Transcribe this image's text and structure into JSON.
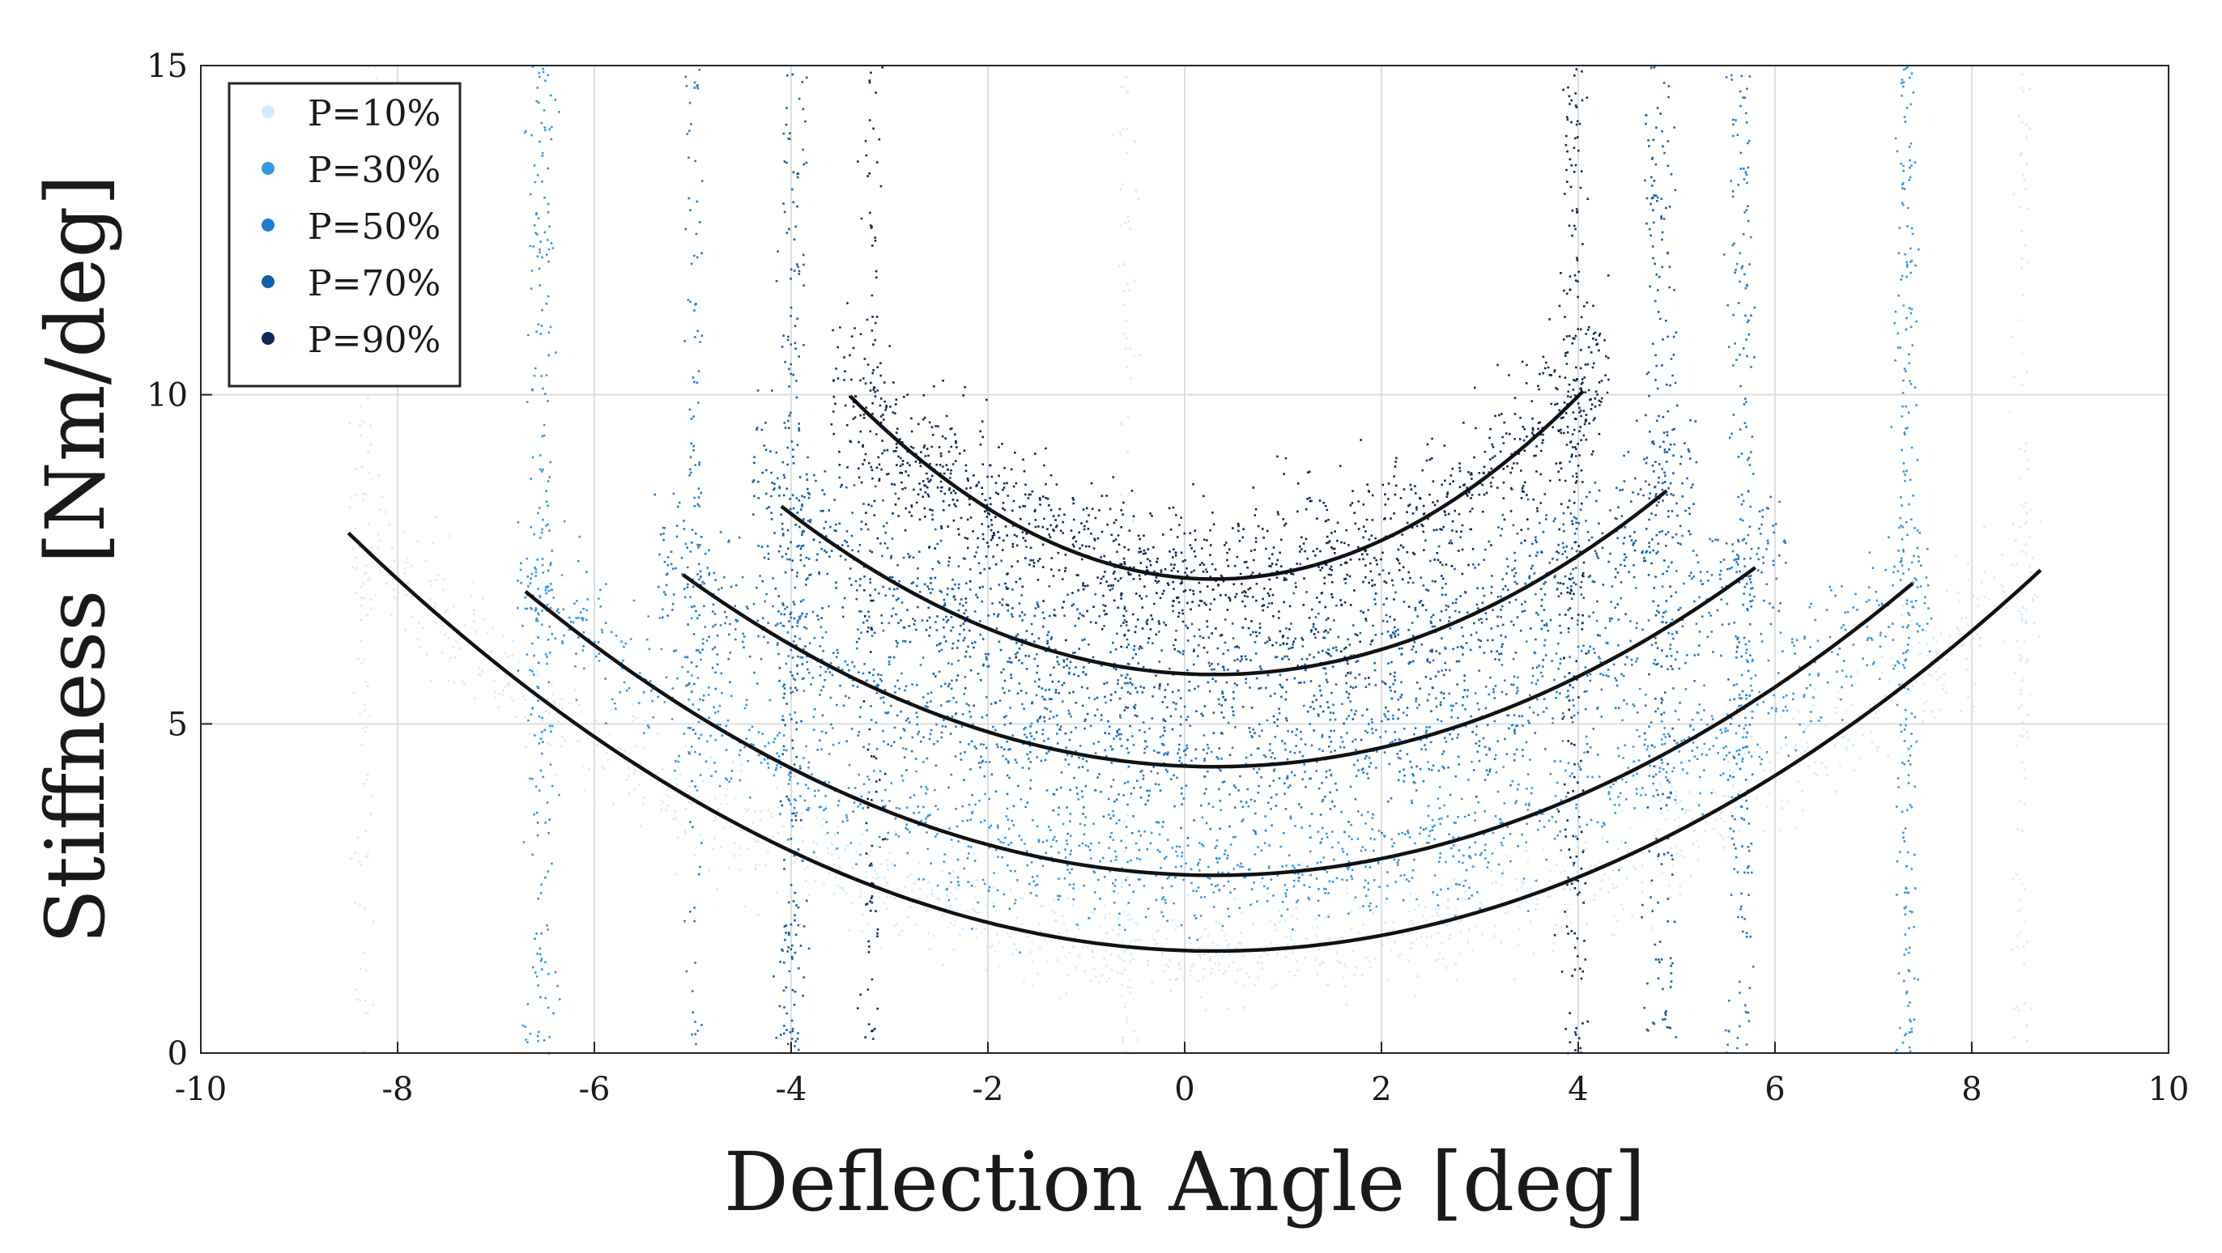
{
  "chart_data": {
    "type": "scatter",
    "title": "",
    "xlabel": "Deflection Angle [deg]",
    "ylabel": "Stiffness [Nm/deg]",
    "xlim": [
      -10,
      10
    ],
    "ylim": [
      0,
      15
    ],
    "xticks": [
      -10,
      -8,
      -6,
      -4,
      -2,
      0,
      2,
      4,
      6,
      8,
      10
    ],
    "yticks": [
      0,
      5,
      10,
      15
    ],
    "grid": true,
    "legend_position": "top-left",
    "series": [
      {
        "name": "P=10%",
        "color": "#d4ecfa",
        "fit": {
          "x0": 0.3,
          "y0": 1.55,
          "a": 0.082,
          "xmin": -8.5,
          "xmax": 8.7
        },
        "edges": [
          -8.1,
          8.3
        ],
        "spikes": [
          -8.35,
          -0.6,
          8.5
        ]
      },
      {
        "name": "P=30%",
        "color": "#3399e6",
        "fit": {
          "x0": 0.3,
          "y0": 2.7,
          "a": 0.088,
          "xmin": -6.7,
          "xmax": 7.4
        },
        "edges": [
          -6.4,
          7.2
        ],
        "spikes": [
          -6.6,
          -6.5,
          7.3,
          7.35
        ]
      },
      {
        "name": "P=50%",
        "color": "#1f7dd1",
        "fit": {
          "x0": 0.3,
          "y0": 4.35,
          "a": 0.1,
          "xmin": -5.1,
          "xmax": 5.8
        },
        "edges": [
          -5.0,
          5.7
        ],
        "spikes": [
          -5.0,
          5.6,
          5.7
        ]
      },
      {
        "name": "P=70%",
        "color": "#125faa",
        "fit": {
          "x0": 0.3,
          "y0": 5.75,
          "a": 0.132,
          "xmin": -4.1,
          "xmax": 4.9
        },
        "edges": [
          -4.0,
          4.8
        ],
        "spikes": [
          -4.05,
          -3.95,
          4.75,
          4.9
        ]
      },
      {
        "name": "P=90%",
        "color": "#0b2a58",
        "fit": {
          "x0": 0.3,
          "y0": 7.2,
          "a": 0.203,
          "xmin": -3.4,
          "xmax": 4.05
        },
        "edges": [
          -3.2,
          3.9
        ],
        "spikes": [
          -3.2,
          3.9,
          4.0
        ]
      }
    ],
    "fit_line_color": "#111111"
  }
}
